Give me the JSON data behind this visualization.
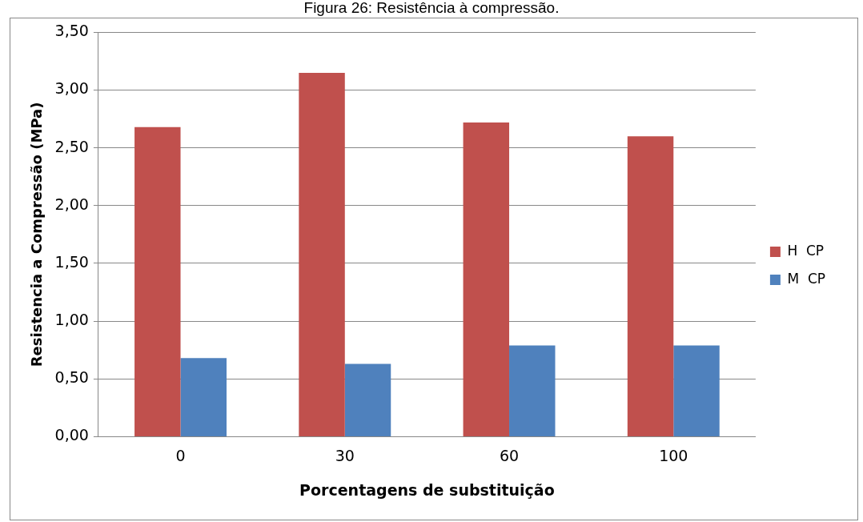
{
  "chart_data": {
    "type": "bar",
    "title": "Figura 26: Resistência à compressão.",
    "xlabel": "Porcentagens de substituição",
    "ylabel": "Resistencia a Compressão (MPa)",
    "categories": [
      "0",
      "30",
      "60",
      "100"
    ],
    "series": [
      {
        "name": "H  CP",
        "color": "#c0504d",
        "values": [
          2.68,
          3.15,
          2.72,
          2.6
        ]
      },
      {
        "name": "M  CP",
        "color": "#4f81bd",
        "values": [
          0.68,
          0.63,
          0.79,
          0.79
        ]
      }
    ],
    "ylim": [
      0,
      3.5
    ],
    "yticks": [
      {
        "value": 0,
        "label": "0,00"
      },
      {
        "value": 0.5,
        "label": "0,50"
      },
      {
        "value": 1,
        "label": "1,00"
      },
      {
        "value": 1.5,
        "label": "1,50"
      },
      {
        "value": 2,
        "label": "2,00"
      },
      {
        "value": 2.5,
        "label": "2,50"
      },
      {
        "value": 3,
        "label": "3,00"
      },
      {
        "value": 3.5,
        "label": "3,50"
      }
    ],
    "grid": "y",
    "legend": "right"
  }
}
